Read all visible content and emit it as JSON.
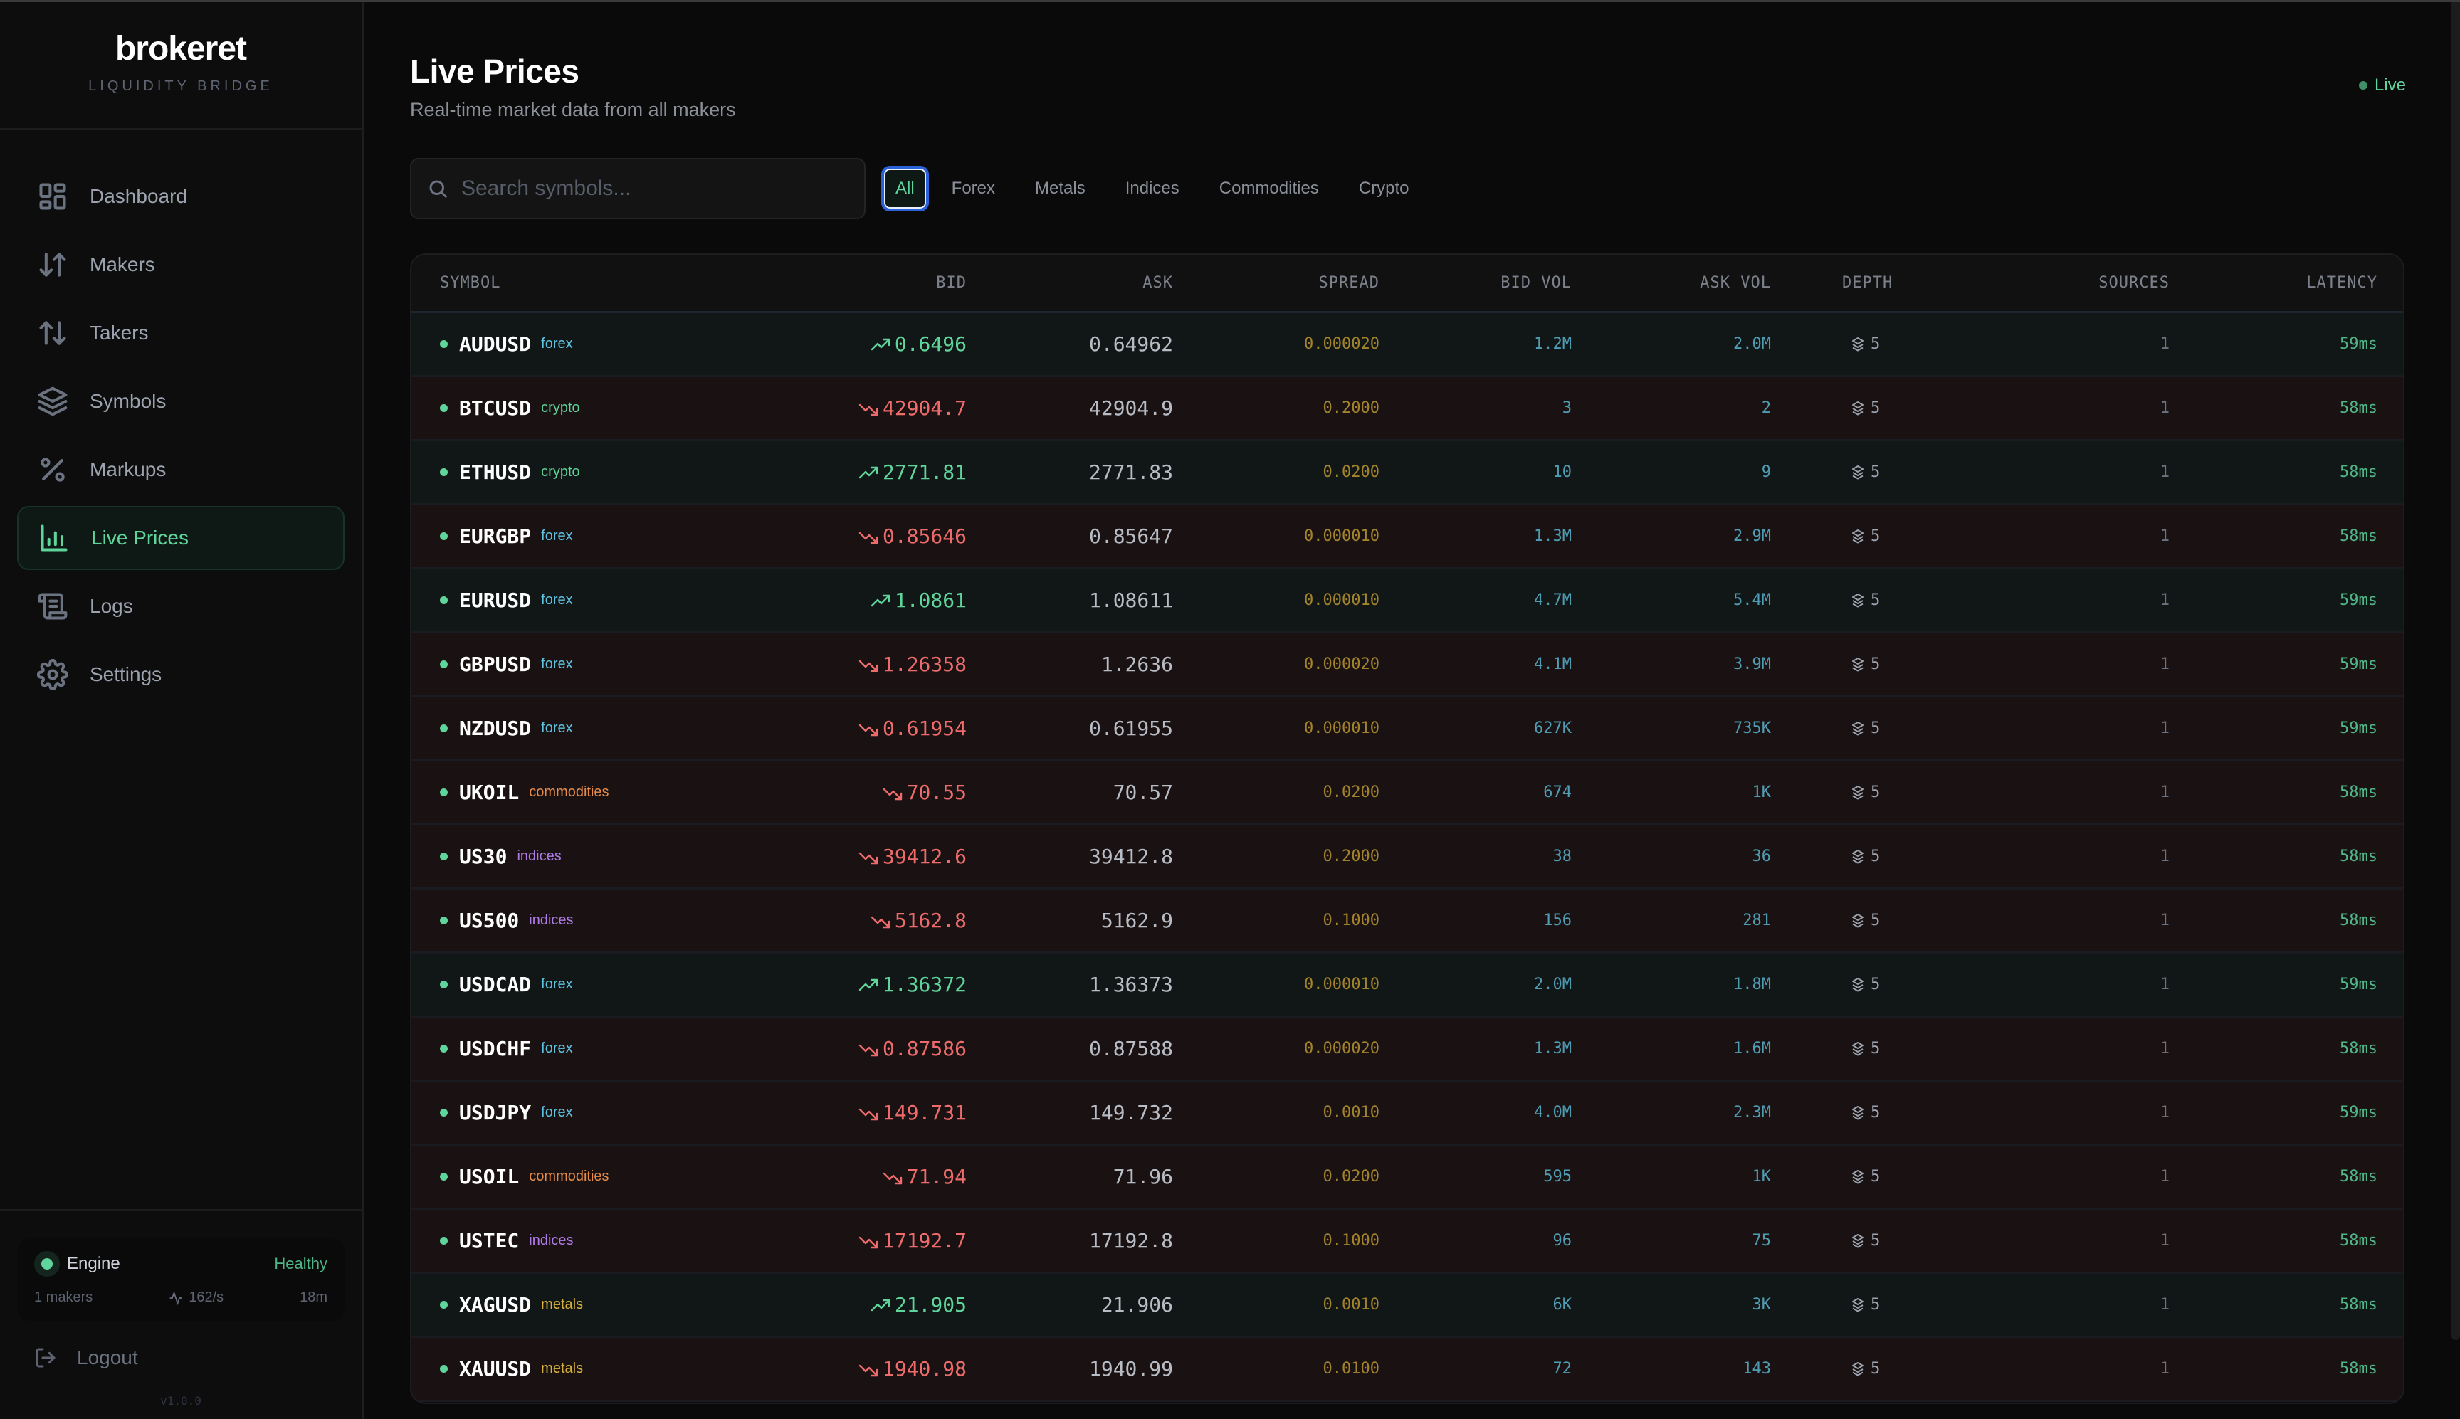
{
  "brand": {
    "name": "brokeret",
    "subtitle": "LIQUIDITY BRIDGE"
  },
  "sidebar": {
    "items": [
      {
        "label": "Dashboard",
        "icon": "dashboard-icon",
        "active": false
      },
      {
        "label": "Makers",
        "icon": "arrows-down-up-icon",
        "active": false
      },
      {
        "label": "Takers",
        "icon": "arrows-up-down-icon",
        "active": false
      },
      {
        "label": "Symbols",
        "icon": "layers-icon",
        "active": false
      },
      {
        "label": "Markups",
        "icon": "percent-icon",
        "active": false
      },
      {
        "label": "Live Prices",
        "icon": "bar-chart-icon",
        "active": true
      },
      {
        "label": "Logs",
        "icon": "scroll-icon",
        "active": false
      },
      {
        "label": "Settings",
        "icon": "gear-icon",
        "active": false
      }
    ],
    "engine": {
      "label": "Engine",
      "status": "Healthy",
      "makers": "1 makers",
      "rate": "162/s",
      "uptime": "18m"
    },
    "logout_label": "Logout",
    "version": "v1.0.0"
  },
  "header": {
    "title": "Live Prices",
    "subtitle": "Real-time market data from all makers",
    "live_label": "Live"
  },
  "search": {
    "placeholder": "Search symbols...",
    "value": ""
  },
  "filters": [
    {
      "label": "All",
      "active": true
    },
    {
      "label": "Forex",
      "active": false
    },
    {
      "label": "Metals",
      "active": false
    },
    {
      "label": "Indices",
      "active": false
    },
    {
      "label": "Commodities",
      "active": false
    },
    {
      "label": "Crypto",
      "active": false
    }
  ],
  "table": {
    "columns": [
      "SYMBOL",
      "BID",
      "ASK",
      "SPREAD",
      "BID VOL",
      "ASK VOL",
      "DEPTH",
      "SOURCES",
      "LATENCY"
    ],
    "rows": [
      {
        "symbol": "AUDUSD",
        "category": "forex",
        "direction": "up",
        "bid": "0.6496",
        "ask": "0.64962",
        "spread": "0.000020",
        "bid_vol": "1.2M",
        "ask_vol": "2.0M",
        "depth": "5",
        "sources": "1",
        "latency": "59ms"
      },
      {
        "symbol": "BTCUSD",
        "category": "crypto",
        "direction": "down",
        "bid": "42904.7",
        "ask": "42904.9",
        "spread": "0.2000",
        "bid_vol": "3",
        "ask_vol": "2",
        "depth": "5",
        "sources": "1",
        "latency": "58ms"
      },
      {
        "symbol": "ETHUSD",
        "category": "crypto",
        "direction": "up",
        "bid": "2771.81",
        "ask": "2771.83",
        "spread": "0.0200",
        "bid_vol": "10",
        "ask_vol": "9",
        "depth": "5",
        "sources": "1",
        "latency": "58ms"
      },
      {
        "symbol": "EURGBP",
        "category": "forex",
        "direction": "down",
        "bid": "0.85646",
        "ask": "0.85647",
        "spread": "0.000010",
        "bid_vol": "1.3M",
        "ask_vol": "2.9M",
        "depth": "5",
        "sources": "1",
        "latency": "58ms"
      },
      {
        "symbol": "EURUSD",
        "category": "forex",
        "direction": "up",
        "bid": "1.0861",
        "ask": "1.08611",
        "spread": "0.000010",
        "bid_vol": "4.7M",
        "ask_vol": "5.4M",
        "depth": "5",
        "sources": "1",
        "latency": "59ms"
      },
      {
        "symbol": "GBPUSD",
        "category": "forex",
        "direction": "down",
        "bid": "1.26358",
        "ask": "1.2636",
        "spread": "0.000020",
        "bid_vol": "4.1M",
        "ask_vol": "3.9M",
        "depth": "5",
        "sources": "1",
        "latency": "59ms"
      },
      {
        "symbol": "NZDUSD",
        "category": "forex",
        "direction": "down",
        "bid": "0.61954",
        "ask": "0.61955",
        "spread": "0.000010",
        "bid_vol": "627K",
        "ask_vol": "735K",
        "depth": "5",
        "sources": "1",
        "latency": "59ms"
      },
      {
        "symbol": "UKOIL",
        "category": "commodities",
        "direction": "down",
        "bid": "70.55",
        "ask": "70.57",
        "spread": "0.0200",
        "bid_vol": "674",
        "ask_vol": "1K",
        "depth": "5",
        "sources": "1",
        "latency": "58ms"
      },
      {
        "symbol": "US30",
        "category": "indices",
        "direction": "down",
        "bid": "39412.6",
        "ask": "39412.8",
        "spread": "0.2000",
        "bid_vol": "38",
        "ask_vol": "36",
        "depth": "5",
        "sources": "1",
        "latency": "58ms"
      },
      {
        "symbol": "US500",
        "category": "indices",
        "direction": "down",
        "bid": "5162.8",
        "ask": "5162.9",
        "spread": "0.1000",
        "bid_vol": "156",
        "ask_vol": "281",
        "depth": "5",
        "sources": "1",
        "latency": "58ms"
      },
      {
        "symbol": "USDCAD",
        "category": "forex",
        "direction": "up",
        "bid": "1.36372",
        "ask": "1.36373",
        "spread": "0.000010",
        "bid_vol": "2.0M",
        "ask_vol": "1.8M",
        "depth": "5",
        "sources": "1",
        "latency": "59ms"
      },
      {
        "symbol": "USDCHF",
        "category": "forex",
        "direction": "down",
        "bid": "0.87586",
        "ask": "0.87588",
        "spread": "0.000020",
        "bid_vol": "1.3M",
        "ask_vol": "1.6M",
        "depth": "5",
        "sources": "1",
        "latency": "58ms"
      },
      {
        "symbol": "USDJPY",
        "category": "forex",
        "direction": "down",
        "bid": "149.731",
        "ask": "149.732",
        "spread": "0.0010",
        "bid_vol": "4.0M",
        "ask_vol": "2.3M",
        "depth": "5",
        "sources": "1",
        "latency": "59ms"
      },
      {
        "symbol": "USOIL",
        "category": "commodities",
        "direction": "down",
        "bid": "71.94",
        "ask": "71.96",
        "spread": "0.0200",
        "bid_vol": "595",
        "ask_vol": "1K",
        "depth": "5",
        "sources": "1",
        "latency": "58ms"
      },
      {
        "symbol": "USTEC",
        "category": "indices",
        "direction": "down",
        "bid": "17192.7",
        "ask": "17192.8",
        "spread": "0.1000",
        "bid_vol": "96",
        "ask_vol": "75",
        "depth": "5",
        "sources": "1",
        "latency": "58ms"
      },
      {
        "symbol": "XAGUSD",
        "category": "metals",
        "direction": "up",
        "bid": "21.905",
        "ask": "21.906",
        "spread": "0.0010",
        "bid_vol": "6K",
        "ask_vol": "3K",
        "depth": "5",
        "sources": "1",
        "latency": "58ms"
      },
      {
        "symbol": "XAUUSD",
        "category": "metals",
        "direction": "down",
        "bid": "1940.98",
        "ask": "1940.99",
        "spread": "0.0100",
        "bid_vol": "72",
        "ask_vol": "143",
        "depth": "5",
        "sources": "1",
        "latency": "58ms"
      }
    ]
  },
  "colors": {
    "accent_green": "#5fd49b",
    "down_red": "#ee6b6b",
    "spread_gold": "#a3842c",
    "volume_teal": "#4f9db5",
    "focus_blue": "#2a63d9"
  }
}
